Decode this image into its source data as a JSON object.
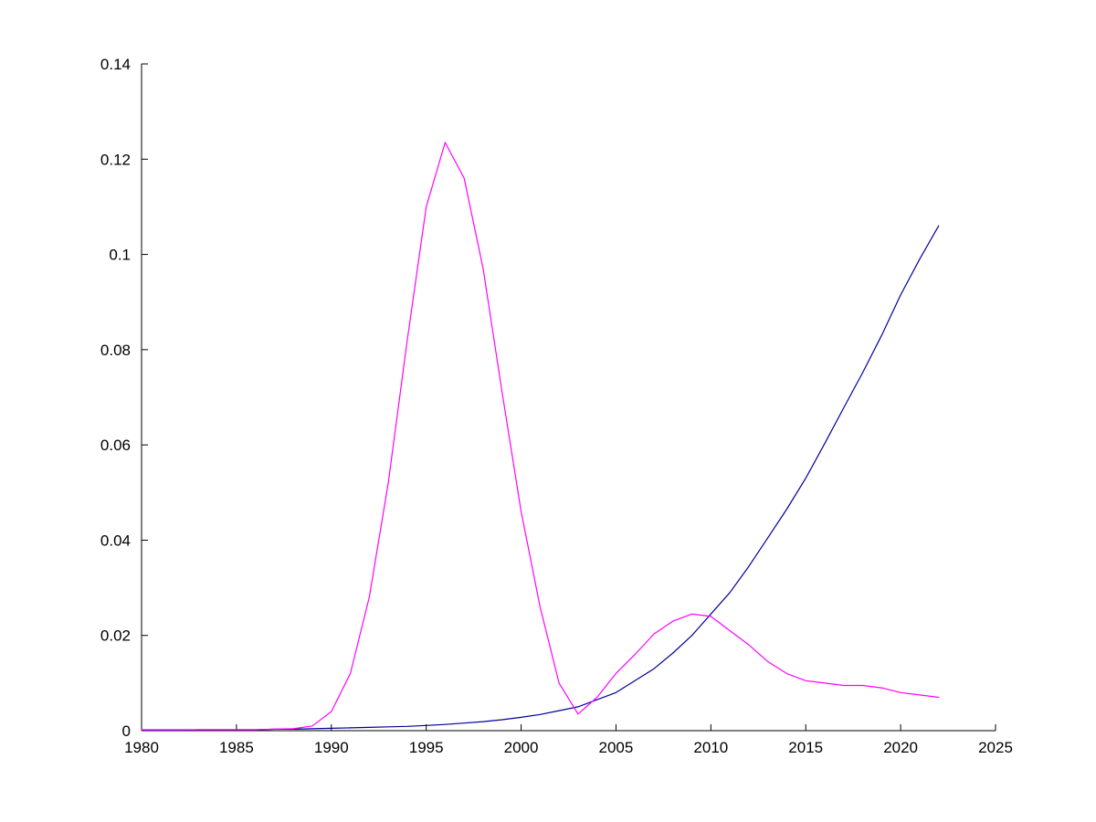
{
  "chart_data": {
    "type": "line",
    "title": "",
    "xlabel": "",
    "ylabel": "",
    "grid": false,
    "legend": null,
    "background": "#ffffff",
    "axis_color": "#000000",
    "xlim": [
      1980,
      2025
    ],
    "ylim": [
      0,
      0.14
    ],
    "xticks": [
      1980,
      1985,
      1990,
      1995,
      2000,
      2005,
      2010,
      2015,
      2020,
      2025
    ],
    "xtick_labels": [
      "1980",
      "1985",
      "1990",
      "1995",
      "2000",
      "2005",
      "2010",
      "2015",
      "2020",
      "2025"
    ],
    "yticks": [
      0,
      0.02,
      0.04,
      0.06,
      0.08,
      0.1,
      0.12,
      0.14
    ],
    "ytick_labels": [
      "0",
      "0.02",
      "0.04",
      "0.06",
      "0.08",
      "0.1",
      "0.12",
      "0.14"
    ],
    "x": [
      1980,
      1981,
      1982,
      1983,
      1984,
      1985,
      1986,
      1987,
      1988,
      1989,
      1990,
      1991,
      1992,
      1993,
      1994,
      1995,
      1996,
      1997,
      1998,
      1999,
      2000,
      2001,
      2002,
      2003,
      2004,
      2005,
      2006,
      2007,
      2008,
      2009,
      2010,
      2011,
      2012,
      2013,
      2014,
      2015,
      2016,
      2017,
      2018,
      2019,
      2020,
      2021,
      2022
    ],
    "series": [
      {
        "name": "blue-line",
        "color": "#000099",
        "values": [
          0.0001,
          0.0001,
          0.0001,
          0.0002,
          0.0002,
          0.0002,
          0.0002,
          0.0003,
          0.0003,
          0.0004,
          0.0005,
          0.0006,
          0.0007,
          0.0008,
          0.0009,
          0.0011,
          0.0013,
          0.0016,
          0.0019,
          0.0023,
          0.0028,
          0.0034,
          0.0042,
          0.005,
          0.0065,
          0.008,
          0.0105,
          0.013,
          0.0163,
          0.02,
          0.0245,
          0.029,
          0.0345,
          0.0405,
          0.0465,
          0.053,
          0.0603,
          0.0678,
          0.0752,
          0.083,
          0.0915,
          0.099,
          0.106
        ]
      },
      {
        "name": "magenta-line",
        "color": "#FF00FF",
        "values": [
          0.0002,
          0.0002,
          0.0002,
          0.0002,
          0.0002,
          0.0002,
          0.0002,
          0.0003,
          0.0004,
          0.001,
          0.004,
          0.012,
          0.028,
          0.052,
          0.082,
          0.11,
          0.1235,
          0.116,
          0.097,
          0.071,
          0.046,
          0.026,
          0.01,
          0.0035,
          0.007,
          0.012,
          0.016,
          0.0203,
          0.023,
          0.0245,
          0.024,
          0.021,
          0.018,
          0.0145,
          0.012,
          0.0105,
          0.01,
          0.0095,
          0.0095,
          0.009,
          0.008,
          0.0075,
          0.007
        ]
      }
    ]
  }
}
